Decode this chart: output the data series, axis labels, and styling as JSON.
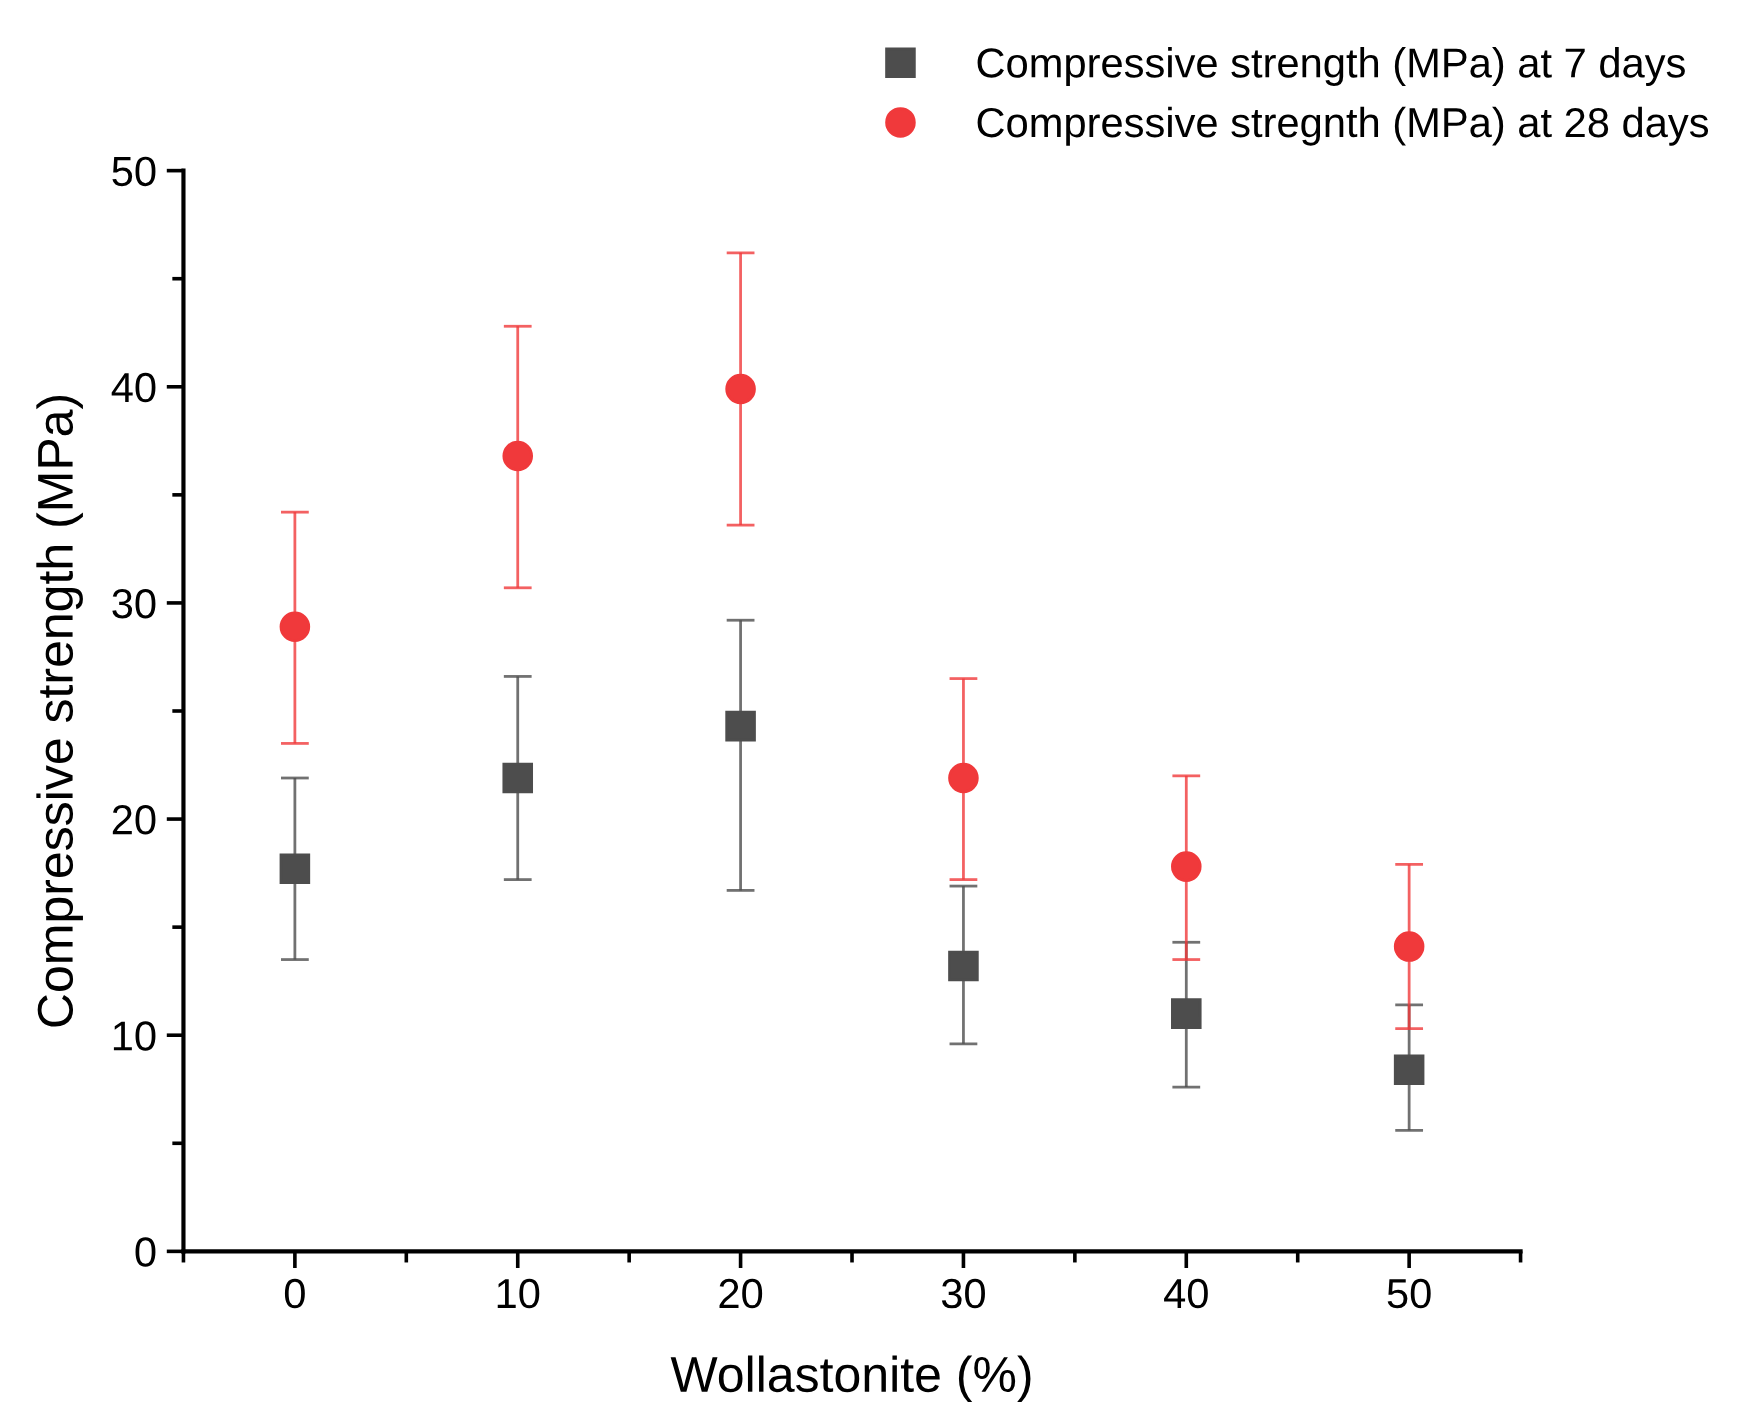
{
  "chart_data": {
    "type": "scatter",
    "xlabel": "Wollastonite (%)",
    "ylabel": "Compressive strength (MPa)",
    "x": [
      0,
      10,
      20,
      30,
      40,
      50
    ],
    "series": [
      {
        "name": "Compressive strength (MPa) at 7 days",
        "color": "#4d4d4d",
        "marker": "square",
        "values": [
          17.7,
          21.9,
          24.3,
          13.2,
          11.0,
          8.4
        ],
        "errors": [
          [
            13.5,
            21.9
          ],
          [
            17.2,
            26.6
          ],
          [
            16.7,
            29.2
          ],
          [
            9.6,
            16.9
          ],
          [
            7.6,
            14.3
          ],
          [
            5.6,
            11.4
          ]
        ]
      },
      {
        "name": "Compressive stregnth (MPa) at 28 days",
        "color": "#f0393b",
        "marker": "circle",
        "values": [
          28.9,
          36.8,
          39.9,
          21.9,
          17.8,
          14.1
        ],
        "errors": [
          [
            23.5,
            34.2
          ],
          [
            30.7,
            42.8
          ],
          [
            33.6,
            46.2
          ],
          [
            17.2,
            26.5
          ],
          [
            13.5,
            22.0
          ],
          [
            10.3,
            17.9
          ]
        ]
      }
    ],
    "xlim": [
      -5,
      55
    ],
    "xticks": [
      0,
      10,
      20,
      30,
      40,
      50
    ],
    "ylim": [
      0,
      50
    ],
    "yticks": [
      0,
      10,
      20,
      30,
      40,
      50
    ],
    "grid": false,
    "legend": "top right"
  }
}
